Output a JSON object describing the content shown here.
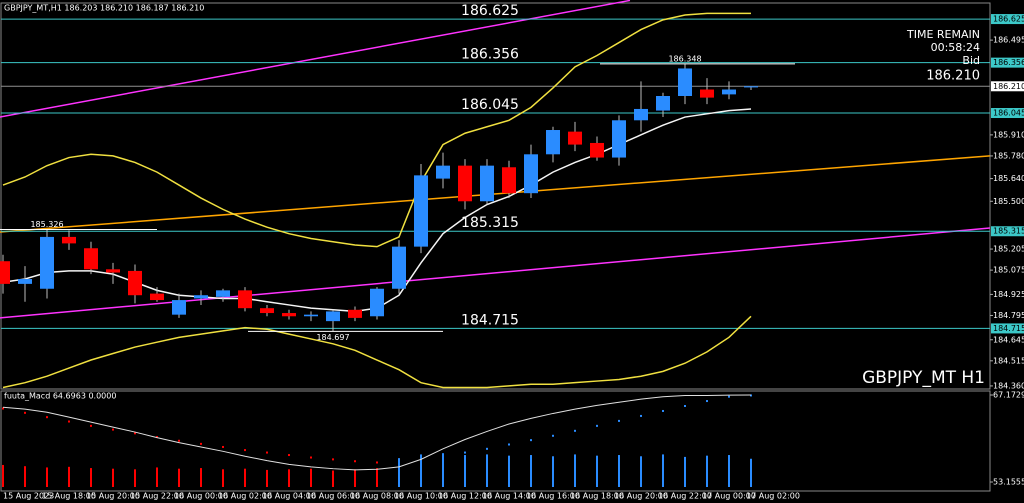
{
  "chart_data": [
    {
      "type": "candlestick",
      "header": "GBPJPY_MT,H1  186.203 186.210 186.187 186.210",
      "watermark": "GBPJPY_MT H1",
      "info": {
        "time_label": "TIME REMAIN",
        "time": "00:58:24",
        "bid_label": "Bid"
      },
      "bid": {
        "value": 186.21,
        "label": "186.210"
      },
      "categories": [
        "15 Aug 2023",
        null,
        null,
        "15 Aug 18:00",
        null,
        "15 Aug 20:00",
        null,
        "15 Aug 22:00",
        null,
        "16 Aug 00:00",
        null,
        "16 Aug 02:00",
        null,
        "16 Aug 04:00",
        null,
        "16 Aug 06:00",
        null,
        "16 Aug 08:00",
        null,
        "16 Aug 10:00",
        null,
        "16 Aug 12:00",
        null,
        "16 Aug 14:00",
        null,
        "16 Aug 16:00",
        null,
        "16 Aug 18:00",
        null,
        "16 Aug 20:00",
        null,
        "16 Aug 22:00",
        null,
        "17 Aug 00:00",
        null,
        "17 Aug 02:00"
      ],
      "open": [
        185.13,
        184.99,
        184.96,
        185.28,
        185.21,
        185.08,
        185.07,
        184.93,
        184.8,
        184.9,
        184.91,
        184.95,
        184.84,
        184.81,
        184.79,
        184.76,
        184.83,
        184.79,
        184.96,
        185.22,
        185.64,
        185.72,
        185.5,
        185.71,
        185.55,
        185.79,
        185.93,
        185.86,
        185.77,
        186.0,
        186.06,
        186.15,
        186.19,
        186.16,
        186.203,
        null
      ],
      "high": [
        185.17,
        185.1,
        185.326,
        185.32,
        185.25,
        185.12,
        185.11,
        184.97,
        184.93,
        184.95,
        184.96,
        184.97,
        184.86,
        184.83,
        184.82,
        184.83,
        184.85,
        184.97,
        185.26,
        185.73,
        185.8,
        185.76,
        185.76,
        185.75,
        185.85,
        185.96,
        185.99,
        185.9,
        186.03,
        186.24,
        186.17,
        186.348,
        186.26,
        186.24,
        186.21,
        null
      ],
      "low": [
        184.93,
        184.88,
        184.9,
        185.2,
        185.05,
        184.99,
        184.87,
        184.88,
        184.78,
        184.86,
        184.88,
        184.82,
        184.79,
        184.77,
        184.76,
        184.697,
        184.76,
        184.77,
        184.93,
        185.18,
        185.58,
        185.45,
        185.48,
        185.52,
        185.52,
        185.74,
        185.81,
        185.75,
        185.72,
        185.93,
        186.02,
        186.1,
        186.1,
        186.13,
        186.187,
        null
      ],
      "close": [
        184.99,
        185.02,
        185.28,
        185.24,
        185.08,
        185.06,
        184.92,
        184.89,
        184.89,
        184.92,
        184.95,
        184.84,
        184.81,
        184.79,
        184.8,
        184.82,
        184.78,
        184.96,
        185.22,
        185.66,
        185.72,
        185.5,
        185.72,
        185.55,
        185.79,
        185.94,
        185.85,
        185.77,
        186.0,
        186.07,
        186.15,
        186.32,
        186.14,
        186.19,
        186.21,
        null
      ],
      "up_color": "#2a8cff",
      "down_color": "#ff0000",
      "wick_color": "#bdbdbd",
      "ylim": [
        184.341,
        186.718
      ],
      "yticks": [
        186.495,
        {
          "value": 185.91,
          "label": "185.910"
        },
        {
          "value": 185.78,
          "label": "185.780"
        },
        {
          "value": 185.64,
          "label": "185.640"
        },
        {
          "value": 185.5,
          "label": "185.500"
        },
        185.205,
        185.075,
        184.925,
        184.795,
        184.645,
        184.515,
        {
          "value": 184.36,
          "label": "184.360"
        }
      ],
      "levels": [
        186.625,
        186.356,
        186.045,
        185.315,
        184.715
      ],
      "level_color": "#3cc8c8",
      "annotations": [
        {
          "index": 2,
          "value": 185.326
        },
        {
          "index": 31,
          "value": 186.348
        },
        {
          "index": 15,
          "value": 184.697
        }
      ],
      "overlays": [
        {
          "color": "#f0e040",
          "values": [
            185.6,
            185.65,
            185.72,
            185.77,
            185.79,
            185.78,
            185.74,
            185.68,
            185.6,
            185.52,
            185.45,
            185.39,
            185.34,
            185.3,
            185.27,
            185.25,
            185.23,
            185.22,
            185.28,
            185.62,
            185.85,
            185.92,
            185.96,
            186.0,
            186.08,
            186.2,
            186.33,
            186.4,
            186.48,
            186.56,
            186.62,
            186.65,
            186.66,
            186.66,
            186.66,
            null
          ]
        },
        {
          "color": "#f0e040",
          "values": [
            184.35,
            184.38,
            184.42,
            184.47,
            184.52,
            184.56,
            184.6,
            184.63,
            184.66,
            184.68,
            184.7,
            184.72,
            184.71,
            184.68,
            184.65,
            184.62,
            184.58,
            184.52,
            184.46,
            184.38,
            184.35,
            184.35,
            184.35,
            184.36,
            184.37,
            184.37,
            184.38,
            184.39,
            184.4,
            184.42,
            184.45,
            184.5,
            184.57,
            184.66,
            184.79,
            null
          ]
        },
        {
          "color": "#f5f5f5",
          "values": [
            185.0,
            185.02,
            185.06,
            185.07,
            185.07,
            185.05,
            185.0,
            184.95,
            184.92,
            184.91,
            184.9,
            184.9,
            184.88,
            184.86,
            184.84,
            184.83,
            184.82,
            184.84,
            184.92,
            185.12,
            185.3,
            185.4,
            185.48,
            185.53,
            185.6,
            185.68,
            185.74,
            185.79,
            185.85,
            185.91,
            185.97,
            186.02,
            186.04,
            186.06,
            186.07,
            null
          ]
        }
      ],
      "trendlines": [
        {
          "color": "#ff33ff",
          "points": [
            [
              -0.14,
              186.02
            ],
            [
              28.5,
              186.74
            ]
          ]
        },
        {
          "color": "#ff33ff",
          "points": [
            [
              -0.14,
              184.78
            ],
            [
              44.86,
              185.335
            ]
          ]
        },
        {
          "color": "#ffa500",
          "points": [
            [
              -0.14,
              185.31
            ],
            [
              44.86,
              185.78
            ]
          ]
        }
      ]
    },
    {
      "type": "bar",
      "title": "fuuta_Macd 64.6963 0.0000",
      "ylim": [
        51.705,
        67.817
      ],
      "yticks": [
        67.1729,
        53.1555
      ],
      "bars": [
        {
          "color": "#ff0000",
          "values": [
            55.9,
            55.7,
            55.5,
            55.6,
            55.4,
            55.3,
            55.2,
            55.5,
            55.3,
            55.4,
            55.2,
            55.3,
            55.1,
            55.2,
            55.3,
            55.0,
            55.2,
            55.4,
            null,
            null,
            null,
            null,
            null,
            null,
            null,
            null,
            null,
            null,
            null,
            null,
            null,
            null,
            null,
            null,
            null,
            null
          ]
        },
        {
          "color": "#2a8cff",
          "values": [
            null,
            null,
            null,
            null,
            null,
            null,
            null,
            null,
            null,
            null,
            null,
            null,
            null,
            null,
            null,
            null,
            null,
            null,
            57.0,
            57.6,
            57.8,
            57.5,
            57.6,
            57.4,
            57.5,
            57.3,
            57.6,
            57.4,
            57.5,
            57.3,
            57.6,
            57.2,
            57.4,
            57.5,
            56.9,
            null
          ]
        }
      ],
      "dots": [
        {
          "color": "#ff0000",
          "values": [
            65.0,
            64.3,
            63.6,
            62.9,
            62.2,
            61.6,
            61.0,
            60.4,
            59.8,
            59.3,
            58.8,
            58.3,
            57.9,
            57.5,
            57.1,
            56.8,
            56.5,
            56.3,
            null,
            null,
            null,
            null,
            null,
            null,
            null,
            null,
            null,
            null,
            null,
            null,
            null,
            null,
            null,
            null,
            null,
            null
          ]
        },
        {
          "color": "#2a8cff",
          "values": [
            null,
            null,
            null,
            null,
            null,
            null,
            null,
            null,
            null,
            null,
            null,
            null,
            null,
            null,
            null,
            null,
            null,
            null,
            56.4,
            56.8,
            57.3,
            57.9,
            58.5,
            59.2,
            59.9,
            60.6,
            61.4,
            62.2,
            63.0,
            63.8,
            64.6,
            65.4,
            66.2,
            66.9,
            67.1,
            null
          ]
        }
      ],
      "line": {
        "color": "#e0e0e0",
        "values": [
          65.2,
          64.9,
          64.4,
          63.6,
          62.8,
          62.0,
          61.2,
          60.3,
          59.5,
          58.8,
          58.1,
          57.3,
          56.6,
          56.0,
          55.6,
          55.3,
          55.1,
          55.2,
          55.6,
          56.8,
          58.5,
          60.0,
          61.3,
          62.5,
          63.4,
          64.2,
          64.9,
          65.5,
          66.0,
          66.5,
          66.9,
          67.1,
          67.1,
          67.15,
          67.17,
          null
        ]
      }
    }
  ]
}
